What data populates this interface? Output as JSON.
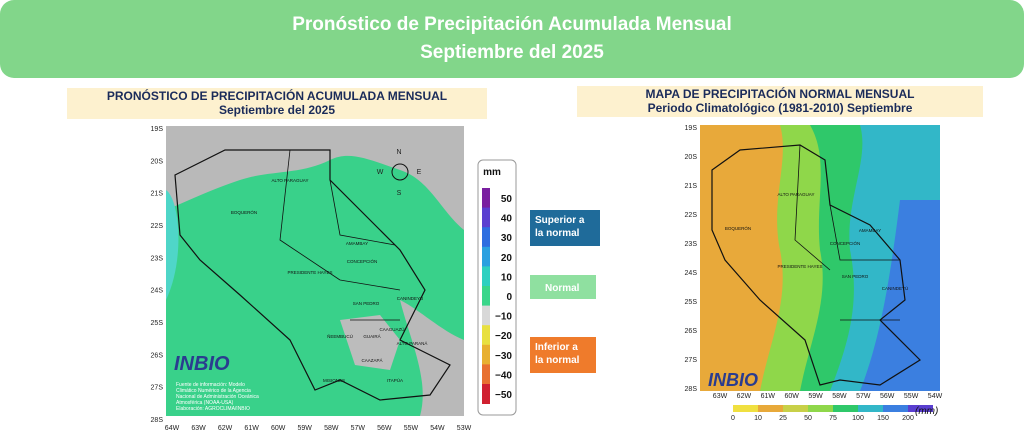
{
  "header": {
    "title": "Pronóstico de Precipitación Acumulada Mensual",
    "subtitle": "Septiembre del 2025"
  },
  "left_panel": {
    "title": "PRONÓSTICO DE PRECIPITACIÓN ACUMULADA MENSUAL",
    "subtitle": "Septiembre del 2025",
    "lat_labels": [
      "19S",
      "20S",
      "21S",
      "22S",
      "23S",
      "24S",
      "25S",
      "26S",
      "27S",
      "28S"
    ],
    "lon_labels": [
      "64W",
      "63W",
      "62W",
      "61W",
      "60W",
      "59W",
      "58W",
      "57W",
      "56W",
      "55W",
      "54W",
      "53W"
    ],
    "regions": [
      "ALTO PARAGUAY",
      "BOQUERÓN",
      "PRESIDENTE HAYES",
      "CONCEPCIÓN",
      "AMAMBAY",
      "SAN PEDRO",
      "CANINDEYÚ",
      "CAAGUAZÚ",
      "ALTO PARANÁ",
      "CAAZAPÁ",
      "ITAPÚA",
      "MISIONES",
      "GUAIRÁ",
      "ÑEEMBUCÚ"
    ],
    "compass": [
      "N",
      "W",
      "E",
      "S"
    ],
    "logo": "INBIO",
    "source": [
      "Fuente de información: Modelo",
      "Climático Numérico de la Agencia",
      "Nacional de Administración Oceánica",
      "Atmosférica (NOAA-USA)",
      "Elaboración: AGROCLIMA/INBIO"
    ],
    "colorbar": {
      "unit": "mm",
      "labels": [
        "50",
        "40",
        "30",
        "20",
        "10",
        "0",
        "−10",
        "−20",
        "−30",
        "−40",
        "−50"
      ]
    },
    "legend": [
      "Superior a la normal",
      "Normal",
      "Inferior a la normal"
    ]
  },
  "right_panel": {
    "title": "MAPA DE PRECIPITACIÓN  NORMAL MENSUAL",
    "subtitle": "Periodo Climatológico (1981-2010)  Septiembre",
    "lat_labels": [
      "19S",
      "20S",
      "21S",
      "22S",
      "23S",
      "24S",
      "25S",
      "26S",
      "27S",
      "28S"
    ],
    "lon_labels": [
      "63W",
      "62W",
      "61W",
      "60W",
      "59W",
      "58W",
      "57W",
      "56W",
      "55W",
      "54W"
    ],
    "regions": [
      "ALTO PARAGUAY",
      "BOQUERÓN",
      "PRESIDENTE HAYES",
      "CONCEPCIÓN",
      "AMAMBAY",
      "SAN PEDRO",
      "CANINDEYÚ"
    ],
    "logo": "INBIO",
    "colorbar": {
      "unit": "(mm)",
      "labels": [
        "0",
        "10",
        "25",
        "50",
        "75",
        "100",
        "150",
        "200"
      ]
    }
  }
}
